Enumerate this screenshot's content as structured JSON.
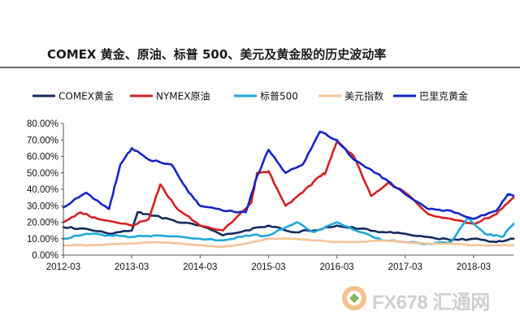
{
  "title": "COMEX 黄金、原油、标普 500、美元及黄金股的历史波动率",
  "watermark": {
    "text": "FX678",
    "text_cn": "汇通网"
  },
  "chart_data": {
    "type": "line",
    "title": "COMEX 黄金、原油、标普 500、美元及黄金股的历史波动率",
    "xlabel": "",
    "ylabel": "",
    "ylim": [
      0,
      80
    ],
    "y_ticks": [
      "0.00%",
      "10.00%",
      "20.00%",
      "30.00%",
      "40.00%",
      "50.00%",
      "60.00%",
      "70.00%",
      "80.00%"
    ],
    "x_ticks": [
      "2012-03",
      "2013-03",
      "2014-03",
      "2015-03",
      "2016-03",
      "2017-03",
      "2018-03"
    ],
    "x_range": [
      "2012-03",
      "2018-10"
    ],
    "grid": false,
    "legend": "top",
    "series": [
      {
        "name": "COMEX黄金",
        "color": "#142b5c",
        "points": [
          [
            "2012-03",
            17
          ],
          [
            "2012-07",
            16
          ],
          [
            "2012-11",
            13
          ],
          [
            "2013-03",
            15
          ],
          [
            "2013-04",
            26
          ],
          [
            "2013-07",
            24
          ],
          [
            "2013-11",
            20
          ],
          [
            "2014-03",
            18
          ],
          [
            "2014-07",
            12
          ],
          [
            "2014-11",
            15
          ],
          [
            "2015-03",
            18
          ],
          [
            "2015-07",
            14
          ],
          [
            "2015-11",
            15
          ],
          [
            "2016-03",
            18
          ],
          [
            "2016-07",
            16
          ],
          [
            "2016-11",
            14
          ],
          [
            "2017-03",
            13
          ],
          [
            "2017-07",
            11
          ],
          [
            "2017-11",
            9
          ],
          [
            "2018-03",
            10
          ],
          [
            "2018-07",
            8
          ],
          [
            "2018-10",
            10
          ]
        ]
      },
      {
        "name": "NYMEX原油",
        "color": "#d42020",
        "points": [
          [
            "2012-03",
            20
          ],
          [
            "2012-06",
            26
          ],
          [
            "2012-09",
            22
          ],
          [
            "2013-03",
            18
          ],
          [
            "2013-06",
            22
          ],
          [
            "2013-08",
            43
          ],
          [
            "2013-11",
            28
          ],
          [
            "2014-03",
            18
          ],
          [
            "2014-07",
            15
          ],
          [
            "2014-12",
            32
          ],
          [
            "2015-01",
            50
          ],
          [
            "2015-03",
            51
          ],
          [
            "2015-06",
            30
          ],
          [
            "2015-09",
            38
          ],
          [
            "2015-12",
            48
          ],
          [
            "2016-01",
            50
          ],
          [
            "2016-03",
            69
          ],
          [
            "2016-06",
            60
          ],
          [
            "2016-09",
            36
          ],
          [
            "2016-12",
            44
          ],
          [
            "2017-03",
            38
          ],
          [
            "2017-07",
            25
          ],
          [
            "2017-11",
            22
          ],
          [
            "2018-03",
            19
          ],
          [
            "2018-07",
            25
          ],
          [
            "2018-10",
            35
          ]
        ]
      },
      {
        "name": "标普500",
        "color": "#1ea8dc",
        "points": [
          [
            "2012-03",
            10
          ],
          [
            "2012-07",
            13
          ],
          [
            "2012-11",
            12
          ],
          [
            "2013-03",
            11
          ],
          [
            "2013-07",
            12
          ],
          [
            "2014-03",
            10
          ],
          [
            "2014-07",
            9
          ],
          [
            "2014-11",
            12
          ],
          [
            "2015-03",
            12
          ],
          [
            "2015-08",
            20
          ],
          [
            "2015-11",
            14
          ],
          [
            "2016-03",
            20
          ],
          [
            "2016-07",
            14
          ],
          [
            "2016-11",
            9
          ],
          [
            "2017-03",
            8
          ],
          [
            "2017-07",
            7
          ],
          [
            "2017-11",
            8
          ],
          [
            "2018-02",
            23
          ],
          [
            "2018-05",
            13
          ],
          [
            "2018-08",
            11
          ],
          [
            "2018-10",
            19
          ]
        ]
      },
      {
        "name": "美元指数",
        "color": "#f5c497",
        "points": [
          [
            "2012-03",
            6
          ],
          [
            "2012-07",
            6
          ],
          [
            "2013-03",
            7
          ],
          [
            "2013-07",
            8
          ],
          [
            "2014-03",
            6
          ],
          [
            "2014-07",
            5
          ],
          [
            "2014-11",
            7
          ],
          [
            "2015-03",
            10
          ],
          [
            "2015-07",
            10
          ],
          [
            "2016-03",
            8
          ],
          [
            "2016-07",
            8
          ],
          [
            "2016-11",
            9
          ],
          [
            "2017-03",
            8
          ],
          [
            "2017-07",
            7
          ],
          [
            "2017-11",
            7
          ],
          [
            "2018-03",
            6
          ],
          [
            "2018-07",
            6
          ],
          [
            "2018-10",
            6
          ]
        ]
      },
      {
        "name": "巴里克黄金",
        "color": "#1525c8",
        "points": [
          [
            "2012-03",
            29
          ],
          [
            "2012-07",
            38
          ],
          [
            "2012-11",
            28
          ],
          [
            "2013-01",
            55
          ],
          [
            "2013-03",
            65
          ],
          [
            "2013-06",
            58
          ],
          [
            "2013-10",
            55
          ],
          [
            "2014-01",
            38
          ],
          [
            "2014-03",
            30
          ],
          [
            "2014-07",
            27
          ],
          [
            "2014-11",
            26
          ],
          [
            "2015-01",
            48
          ],
          [
            "2015-03",
            64
          ],
          [
            "2015-06",
            50
          ],
          [
            "2015-09",
            55
          ],
          [
            "2015-12",
            75
          ],
          [
            "2016-03",
            70
          ],
          [
            "2016-06",
            58
          ],
          [
            "2016-09",
            52
          ],
          [
            "2016-12",
            45
          ],
          [
            "2017-03",
            37
          ],
          [
            "2017-07",
            28
          ],
          [
            "2017-11",
            27
          ],
          [
            "2018-03",
            22
          ],
          [
            "2018-07",
            27
          ],
          [
            "2018-09",
            37
          ],
          [
            "2018-10",
            36
          ]
        ]
      }
    ]
  }
}
